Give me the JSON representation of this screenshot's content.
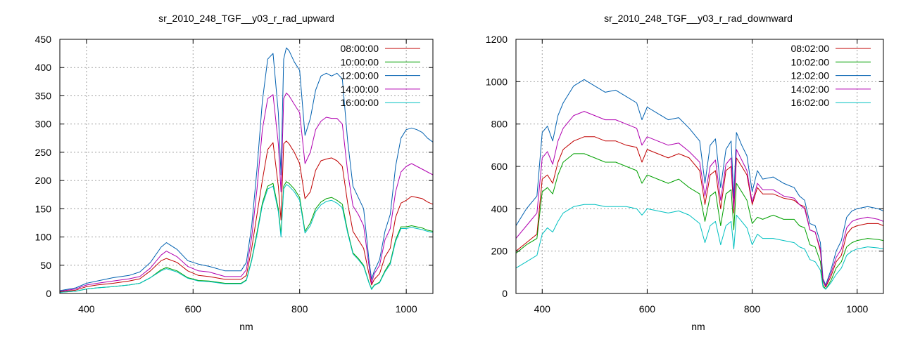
{
  "chart_data": [
    {
      "type": "line",
      "title": "sr_2010_248_TGF__y03_r_rad_upward",
      "xlabel": "nm",
      "ylabel": "",
      "xlim": [
        350,
        1050
      ],
      "ylim": [
        0,
        450
      ],
      "xticks": [
        400,
        600,
        800,
        1000
      ],
      "yticks": [
        0,
        50,
        100,
        150,
        200,
        250,
        300,
        350,
        400,
        450
      ],
      "grid": true,
      "legend_position": "top-right",
      "x": [
        350,
        380,
        400,
        420,
        450,
        480,
        500,
        520,
        540,
        550,
        570,
        590,
        610,
        630,
        660,
        690,
        700,
        710,
        720,
        730,
        740,
        750,
        760,
        765,
        770,
        775,
        780,
        790,
        800,
        810,
        820,
        830,
        840,
        850,
        860,
        870,
        880,
        890,
        900,
        910,
        920,
        930,
        935,
        940,
        950,
        960,
        970,
        980,
        990,
        1000,
        1010,
        1020,
        1030,
        1040,
        1050
      ],
      "series": [
        {
          "name": "08:00:00",
          "color": "#c00000",
          "values": [
            3,
            6,
            12,
            15,
            18,
            22,
            26,
            40,
            58,
            62,
            55,
            40,
            32,
            30,
            25,
            25,
            32,
            80,
            140,
            200,
            255,
            267,
            190,
            130,
            265,
            270,
            265,
            250,
            230,
            168,
            180,
            218,
            235,
            238,
            240,
            235,
            225,
            160,
            110,
            95,
            80,
            35,
            15,
            25,
            35,
            65,
            80,
            135,
            160,
            165,
            172,
            170,
            168,
            162,
            158
          ]
        },
        {
          "name": "10:00:00",
          "color": "#00a000",
          "values": [
            2,
            4,
            8,
            10,
            12,
            15,
            18,
            28,
            42,
            46,
            40,
            28,
            23,
            22,
            18,
            18,
            24,
            60,
            108,
            160,
            190,
            195,
            150,
            105,
            190,
            198,
            195,
            185,
            170,
            110,
            125,
            150,
            162,
            168,
            170,
            165,
            158,
            110,
            72,
            62,
            50,
            20,
            8,
            15,
            20,
            40,
            55,
            95,
            118,
            118,
            120,
            118,
            116,
            112,
            110
          ]
        },
        {
          "name": "12:00:00",
          "color": "#0060b0",
          "values": [
            5,
            10,
            18,
            22,
            28,
            32,
            38,
            55,
            82,
            90,
            78,
            58,
            52,
            48,
            40,
            40,
            55,
            120,
            220,
            340,
            415,
            425,
            320,
            210,
            415,
            435,
            430,
            410,
            395,
            280,
            310,
            360,
            385,
            390,
            385,
            390,
            380,
            270,
            190,
            170,
            150,
            60,
            25,
            40,
            60,
            110,
            140,
            225,
            275,
            290,
            293,
            290,
            285,
            275,
            268
          ]
        },
        {
          "name": "14:00:00",
          "color": "#b000b0",
          "values": [
            4,
            8,
            15,
            18,
            22,
            26,
            30,
            45,
            68,
            75,
            65,
            48,
            40,
            38,
            30,
            30,
            42,
            100,
            185,
            290,
            345,
            352,
            265,
            180,
            345,
            355,
            350,
            335,
            320,
            230,
            250,
            290,
            305,
            312,
            310,
            310,
            300,
            215,
            155,
            140,
            120,
            50,
            18,
            35,
            50,
            95,
            115,
            180,
            215,
            225,
            230,
            225,
            220,
            215,
            210
          ]
        },
        {
          "name": "16:00:00",
          "color": "#00c0c0",
          "values": [
            2,
            4,
            8,
            10,
            12,
            15,
            18,
            28,
            40,
            44,
            38,
            27,
            22,
            21,
            17,
            17,
            23,
            58,
            104,
            156,
            185,
            190,
            145,
            100,
            185,
            193,
            190,
            180,
            165,
            107,
            120,
            145,
            157,
            163,
            165,
            160,
            152,
            107,
            70,
            60,
            48,
            19,
            7,
            14,
            19,
            38,
            52,
            92,
            115,
            115,
            117,
            115,
            113,
            110,
            108
          ]
        }
      ]
    },
    {
      "type": "line",
      "title": "sr_2010_248_TGF__y03_r_rad_downward",
      "xlabel": "nm",
      "ylabel": "",
      "xlim": [
        350,
        1050
      ],
      "ylim": [
        0,
        1200
      ],
      "xticks": [
        400,
        600,
        800,
        1000
      ],
      "yticks": [
        0,
        200,
        400,
        600,
        800,
        1000,
        1200
      ],
      "grid": true,
      "legend_position": "top-right",
      "x": [
        350,
        370,
        390,
        400,
        410,
        420,
        430,
        440,
        460,
        480,
        500,
        520,
        540,
        560,
        580,
        590,
        600,
        620,
        640,
        660,
        680,
        700,
        710,
        720,
        730,
        740,
        750,
        760,
        765,
        770,
        780,
        790,
        800,
        810,
        820,
        840,
        860,
        880,
        890,
        900,
        910,
        920,
        930,
        935,
        940,
        950,
        960,
        970,
        980,
        990,
        1000,
        1020,
        1040,
        1050
      ],
      "series": [
        {
          "name": "08:02:00",
          "color": "#c00000",
          "values": [
            200,
            240,
            280,
            540,
            560,
            520,
            620,
            680,
            720,
            740,
            740,
            720,
            720,
            700,
            690,
            620,
            680,
            660,
            640,
            660,
            640,
            580,
            420,
            560,
            580,
            400,
            580,
            600,
            380,
            640,
            600,
            560,
            420,
            500,
            470,
            470,
            450,
            440,
            420,
            410,
            300,
            290,
            200,
            60,
            30,
            80,
            150,
            180,
            280,
            310,
            320,
            330,
            330,
            320
          ]
        },
        {
          "name": "10:02:00",
          "color": "#00a000",
          "values": [
            190,
            230,
            260,
            480,
            500,
            470,
            560,
            620,
            660,
            660,
            640,
            620,
            620,
            600,
            580,
            520,
            560,
            540,
            520,
            540,
            500,
            470,
            340,
            460,
            480,
            320,
            470,
            490,
            300,
            520,
            480,
            440,
            330,
            360,
            350,
            370,
            350,
            350,
            320,
            310,
            230,
            220,
            150,
            40,
            20,
            60,
            120,
            150,
            220,
            240,
            250,
            260,
            255,
            250
          ]
        },
        {
          "name": "12:02:00",
          "color": "#0060b0",
          "values": [
            320,
            400,
            460,
            760,
            790,
            720,
            840,
            900,
            980,
            1010,
            980,
            950,
            960,
            930,
            900,
            820,
            880,
            850,
            820,
            830,
            780,
            720,
            520,
            700,
            730,
            500,
            680,
            720,
            450,
            760,
            700,
            650,
            480,
            580,
            540,
            550,
            520,
            500,
            460,
            440,
            330,
            320,
            240,
            70,
            40,
            110,
            200,
            250,
            360,
            390,
            400,
            410,
            400,
            390
          ]
        },
        {
          "name": "14:02:00",
          "color": "#b000b0",
          "values": [
            260,
            320,
            380,
            640,
            670,
            610,
            720,
            780,
            840,
            860,
            840,
            820,
            820,
            800,
            780,
            700,
            740,
            720,
            700,
            710,
            670,
            620,
            460,
            600,
            630,
            440,
            610,
            640,
            400,
            680,
            630,
            580,
            430,
            520,
            490,
            490,
            460,
            450,
            420,
            400,
            300,
            290,
            210,
            60,
            35,
            95,
            170,
            210,
            310,
            340,
            350,
            360,
            350,
            340
          ]
        },
        {
          "name": "16:02:00",
          "color": "#00c0c0",
          "values": [
            120,
            150,
            180,
            280,
            310,
            290,
            340,
            380,
            410,
            420,
            420,
            410,
            410,
            410,
            400,
            370,
            400,
            390,
            380,
            390,
            370,
            330,
            240,
            320,
            340,
            230,
            320,
            340,
            210,
            370,
            340,
            310,
            230,
            280,
            260,
            260,
            250,
            240,
            220,
            210,
            160,
            150,
            110,
            30,
            20,
            50,
            90,
            120,
            180,
            200,
            210,
            220,
            215,
            210
          ]
        }
      ]
    }
  ]
}
